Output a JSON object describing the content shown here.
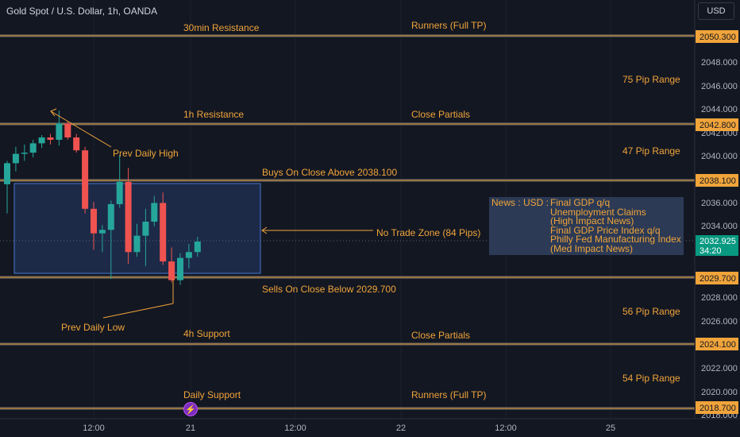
{
  "header": {
    "title": "Gold Spot / U.S. Dollar, 1h, OANDA",
    "currency_button": "USD"
  },
  "price_axis": {
    "ticks": [
      "2048.000",
      "2046.000",
      "2044.000",
      "2042.000",
      "2040.000",
      "2036.000",
      "2034.000",
      "2028.000",
      "2026.000",
      "2022.000",
      "2020.000",
      "2018.000"
    ],
    "tags": {
      "p2050": "2050.300",
      "p2042": "2042.800",
      "p2038": "2038.100",
      "current": "2032.925",
      "countdown": "34:20",
      "p2029": "2029.700",
      "p2024": "2024.100",
      "p2018": "2018.700"
    },
    "colors": {
      "level_tag": "#f0a43a",
      "current_tag": "#089981"
    }
  },
  "time_axis": {
    "labels": [
      "12:00",
      "21",
      "12:00",
      "22",
      "12:00",
      "25"
    ]
  },
  "annotations": {
    "res30": "30min Resistance",
    "runners_top": "Runners (Full TP)",
    "range75": "75 Pip Range",
    "res1h": "1h Resistance",
    "partials_top": "Close Partials",
    "prev_high": "Prev Daily High",
    "range47": "47 Pip Range",
    "buys": "Buys On Close Above 2038.100",
    "no_trade": "No Trade Zone (84 Pips)",
    "sells": "Sells On Close Below 2029.700",
    "range56": "56 Pip Range",
    "prev_low": "Prev Daily Low",
    "sup4h": "4h Support",
    "partials_bottom": "Close Partials",
    "range54": "54 Pip Range",
    "daily_support": "Daily Support",
    "runners_bottom": "Runners (Full TP)"
  },
  "news": {
    "prefix": "News : USD :",
    "lines": [
      "Final GDP q/q",
      "Unemployment Claims",
      "(High Impact News)",
      "Final GDP Price Index q/q",
      "Philly Fed Manufacturing Index",
      "(Med Impact News)"
    ]
  },
  "event_icon": "lightning-icon",
  "colors": {
    "up": "#26a69a",
    "down": "#ef5350",
    "accent": "#f0a43a",
    "zone": "#4a78d0"
  },
  "chart_data": {
    "type": "candlestick",
    "ylim": [
      2018,
      2051
    ],
    "candles": [
      {
        "o": 2037.8,
        "h": 2039.8,
        "l": 2035.3,
        "c": 2039.6
      },
      {
        "o": 2039.6,
        "h": 2041.0,
        "l": 2038.9,
        "c": 2040.4
      },
      {
        "o": 2040.4,
        "h": 2041.2,
        "l": 2039.8,
        "c": 2040.5
      },
      {
        "o": 2040.5,
        "h": 2041.6,
        "l": 2040.1,
        "c": 2041.3
      },
      {
        "o": 2041.3,
        "h": 2042.0,
        "l": 2040.9,
        "c": 2041.8
      },
      {
        "o": 2041.8,
        "h": 2042.1,
        "l": 2041.2,
        "c": 2041.6
      },
      {
        "o": 2041.6,
        "h": 2044.1,
        "l": 2041.1,
        "c": 2043.0
      },
      {
        "o": 2043.0,
        "h": 2043.2,
        "l": 2041.6,
        "c": 2041.8
      },
      {
        "o": 2041.8,
        "h": 2042.1,
        "l": 2040.5,
        "c": 2040.7
      },
      {
        "o": 2040.7,
        "h": 2041.0,
        "l": 2035.3,
        "c": 2035.7
      },
      {
        "o": 2035.7,
        "h": 2036.3,
        "l": 2032.2,
        "c": 2033.6
      },
      {
        "o": 2033.6,
        "h": 2034.3,
        "l": 2032.0,
        "c": 2033.9
      },
      {
        "o": 2033.9,
        "h": 2036.4,
        "l": 2029.7,
        "c": 2036.1
      },
      {
        "o": 2036.1,
        "h": 2040.3,
        "l": 2035.8,
        "c": 2038.0
      },
      {
        "o": 2038.0,
        "h": 2039.2,
        "l": 2031.0,
        "c": 2032.0
      },
      {
        "o": 2032.0,
        "h": 2034.4,
        "l": 2031.6,
        "c": 2033.4
      },
      {
        "o": 2033.4,
        "h": 2035.7,
        "l": 2030.8,
        "c": 2034.6
      },
      {
        "o": 2034.6,
        "h": 2036.8,
        "l": 2034.2,
        "c": 2036.2
      },
      {
        "o": 2036.2,
        "h": 2037.1,
        "l": 2030.9,
        "c": 2031.2
      },
      {
        "o": 2031.2,
        "h": 2032.4,
        "l": 2029.4,
        "c": 2029.6
      },
      {
        "o": 2029.6,
        "h": 2031.9,
        "l": 2029.2,
        "c": 2031.5
      },
      {
        "o": 2031.5,
        "h": 2032.7,
        "l": 2030.6,
        "c": 2032.0
      },
      {
        "o": 2032.0,
        "h": 2033.3,
        "l": 2031.6,
        "c": 2032.9
      }
    ],
    "levels": [
      2050.3,
      2042.8,
      2038.1,
      2029.7,
      2024.1,
      2018.7
    ],
    "no_trade_zone": [
      2029.7,
      2038.1
    ],
    "current_price": 2032.925
  }
}
